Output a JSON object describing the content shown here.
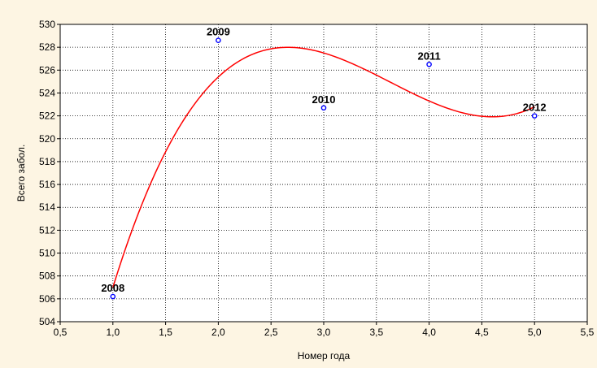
{
  "chart_data": {
    "type": "scatter",
    "xlabel": "Номер года",
    "ylabel": "Всего забол.",
    "xlim": [
      0.5,
      5.5
    ],
    "ylim": [
      504,
      530
    ],
    "x_ticks": [
      0.5,
      1.0,
      1.5,
      2.0,
      2.5,
      3.0,
      3.5,
      4.0,
      4.5,
      5.0,
      5.5
    ],
    "x_tick_labels": [
      "0,5",
      "1,0",
      "1,5",
      "2,0",
      "2,5",
      "3,0",
      "3,5",
      "4,0",
      "4,5",
      "5,0",
      "5,5"
    ],
    "y_ticks": [
      504,
      506,
      508,
      510,
      512,
      514,
      516,
      518,
      520,
      522,
      524,
      526,
      528,
      530
    ],
    "y_tick_labels": [
      "504",
      "506",
      "508",
      "510",
      "512",
      "514",
      "516",
      "518",
      "520",
      "522",
      "524",
      "526",
      "528",
      "530"
    ],
    "grid": true,
    "points": [
      {
        "x": 1,
        "y": 506.2,
        "label": "2008"
      },
      {
        "x": 2,
        "y": 528.6,
        "label": "2009"
      },
      {
        "x": 3,
        "y": 522.7,
        "label": "2010"
      },
      {
        "x": 4,
        "y": 526.5,
        "label": "2011"
      },
      {
        "x": 5,
        "y": 522.0,
        "label": "2012"
      }
    ],
    "fit_curve": {
      "type": "polynomial",
      "degree": 3,
      "x_range": [
        1,
        5
      ],
      "fitted_values": [
        {
          "x": 1.0,
          "y": 506.9
        },
        {
          "x": 1.5,
          "y": 518.5
        },
        {
          "x": 2.0,
          "y": 525.2
        },
        {
          "x": 2.65,
          "y": 528.0
        },
        {
          "x": 3.0,
          "y": 527.6
        },
        {
          "x": 3.5,
          "y": 525.6
        },
        {
          "x": 4.0,
          "y": 523.2
        },
        {
          "x": 4.6,
          "y": 521.9
        },
        {
          "x": 5.0,
          "y": 522.7
        }
      ]
    },
    "colors": {
      "background": "#fdf5e3",
      "plot_area": "#ffffff",
      "points": "#0000ff",
      "fit_curve": "#ff0000",
      "grid": "#000000"
    }
  }
}
